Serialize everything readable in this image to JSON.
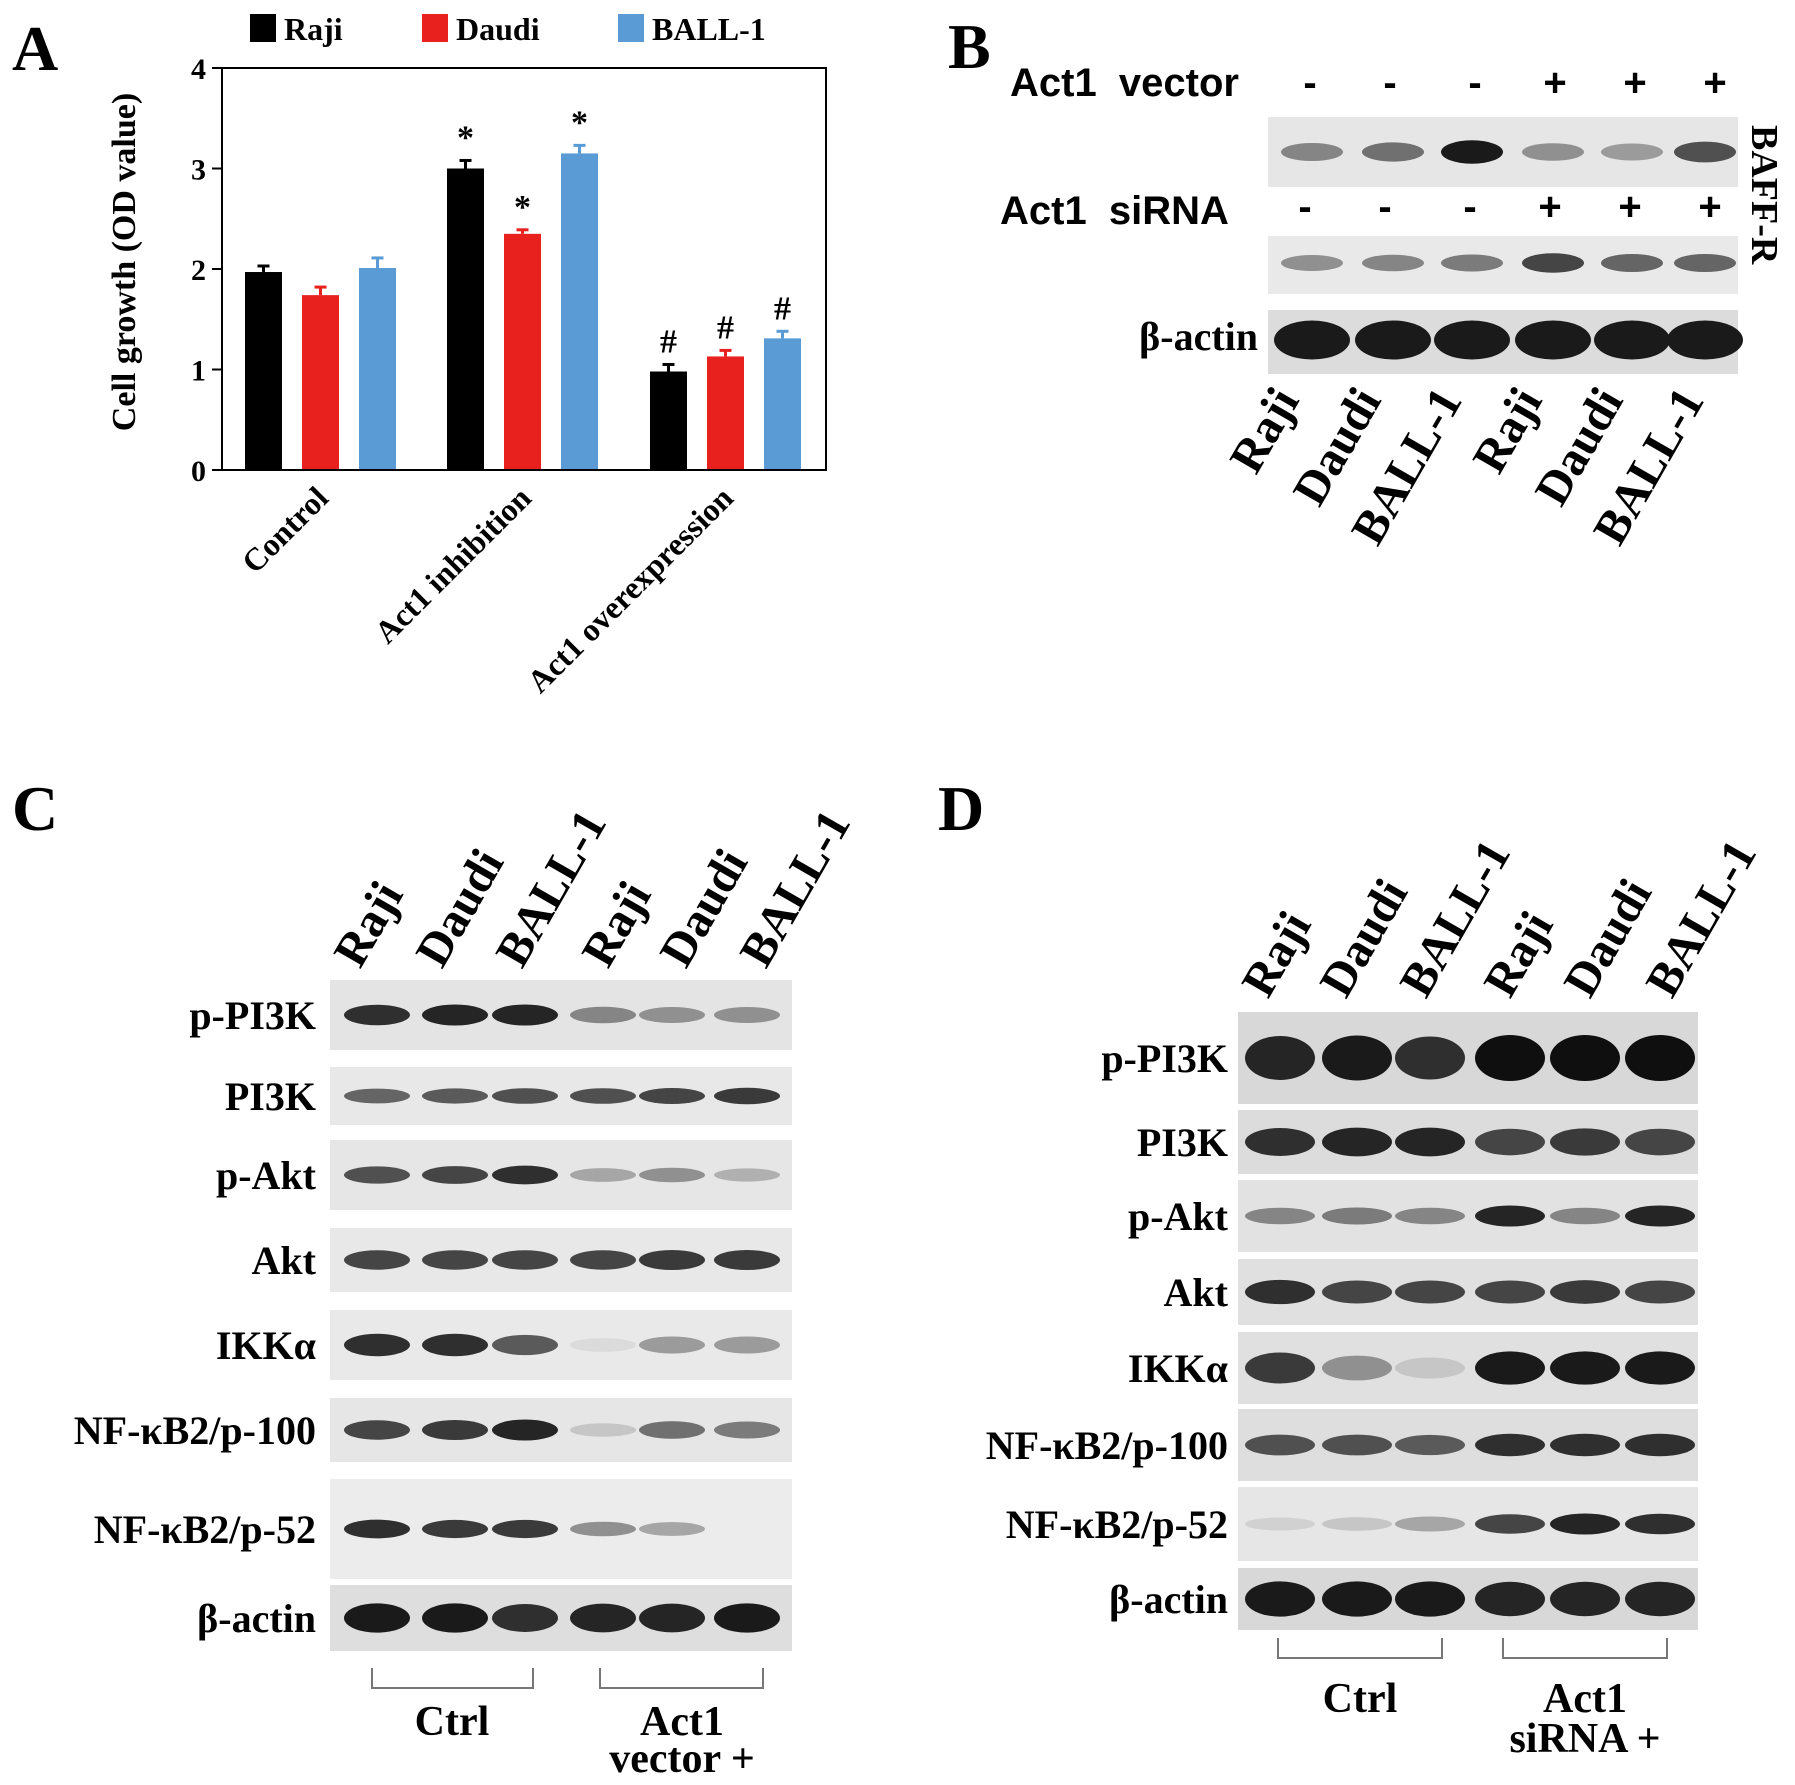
{
  "panels": {
    "a": {
      "letter": "A"
    },
    "b": {
      "letter": "B",
      "vector_label": "Act1  vector",
      "vector_signs": [
        "-",
        "-",
        "-",
        "+",
        "+",
        "+"
      ],
      "sirna_label": "Act1  siRNA",
      "sirna_signs": [
        "-",
        "-",
        "-",
        "+",
        "+",
        "+"
      ],
      "side_label": "BAFF-R",
      "actin_label": "β-actin",
      "lanes": [
        "Raji",
        "Daudi",
        "BALL-1",
        "Raji",
        "Daudi",
        "BALL-1"
      ]
    },
    "c": {
      "letter": "C",
      "lanes": [
        "Raji",
        "Daudi",
        "BALL-1",
        "Raji",
        "Daudi",
        "BALL-1"
      ],
      "rows": [
        "p-PI3K",
        "PI3K",
        "p-Akt",
        "Akt",
        "IKKα",
        "NF-κB2/p-100",
        "NF-κB2/p-52",
        "β-actin"
      ],
      "group_ctrl": "Ctrl",
      "group_treat_line1": "Act1",
      "group_treat_line2": "vector +"
    },
    "d": {
      "letter": "D",
      "lanes": [
        "Raji",
        "Daudi",
        "BALL-1",
        "Raji",
        "Daudi",
        "BALL-1"
      ],
      "rows": [
        "p-PI3K",
        "PI3K",
        "p-Akt",
        "Akt",
        "IKKα",
        "NF-κB2/p-100",
        "NF-κB2/p-52",
        "β-actin"
      ],
      "group_ctrl": "Ctrl",
      "group_treat_line1": "Act1",
      "group_treat_line2": "siRNA +"
    }
  },
  "chart_data": {
    "type": "bar",
    "title": "",
    "xlabel": "",
    "ylabel": "Cell growth (OD value)",
    "ylim": [
      0,
      4
    ],
    "yticks": [
      "0",
      "1",
      "2",
      "3",
      "4"
    ],
    "categories": [
      "Control",
      "Act1 inhibition",
      "Act1 overexpression"
    ],
    "series": [
      {
        "name": "Raji",
        "color": "#000000",
        "values": [
          1.97,
          3.0,
          0.98
        ],
        "errors": [
          0.06,
          0.08,
          0.07
        ],
        "marks": [
          "",
          "*",
          "#"
        ]
      },
      {
        "name": "Daudi",
        "color": "#e8211f",
        "values": [
          1.74,
          2.35,
          1.13
        ],
        "errors": [
          0.08,
          0.04,
          0.06
        ],
        "marks": [
          "",
          "*",
          "#"
        ]
      },
      {
        "name": "BALL-1",
        "color": "#5b9bd5",
        "values": [
          2.01,
          3.15,
          1.31
        ],
        "errors": [
          0.1,
          0.08,
          0.07
        ],
        "marks": [
          "",
          "*",
          "#"
        ]
      }
    ],
    "legend_position": "top",
    "grid": false
  },
  "blots": {
    "b_top": [
      0.45,
      0.55,
      0.95,
      0.4,
      0.35,
      0.7
    ],
    "b_mid": [
      0.4,
      0.45,
      0.5,
      0.75,
      0.6,
      0.6
    ],
    "b_actin": [
      0.95,
      0.95,
      0.95,
      0.95,
      0.95,
      0.95
    ],
    "c": [
      [
        0.85,
        0.9,
        0.9,
        0.45,
        0.4,
        0.4
      ],
      [
        0.6,
        0.65,
        0.7,
        0.7,
        0.75,
        0.8
      ],
      [
        0.7,
        0.75,
        0.85,
        0.3,
        0.4,
        0.25
      ],
      [
        0.75,
        0.75,
        0.75,
        0.75,
        0.8,
        0.8
      ],
      [
        0.85,
        0.85,
        0.65,
        0.05,
        0.35,
        0.35
      ],
      [
        0.75,
        0.8,
        0.9,
        0.15,
        0.55,
        0.5
      ],
      [
        0.85,
        0.8,
        0.8,
        0.4,
        0.3,
        0.0
      ],
      [
        0.95,
        0.95,
        0.85,
        0.9,
        0.9,
        0.95
      ]
    ],
    "d": [
      [
        0.9,
        0.95,
        0.85,
        1.0,
        1.0,
        1.0
      ],
      [
        0.85,
        0.9,
        0.9,
        0.75,
        0.8,
        0.75
      ],
      [
        0.45,
        0.5,
        0.45,
        0.9,
        0.45,
        0.9
      ],
      [
        0.85,
        0.75,
        0.75,
        0.75,
        0.8,
        0.75
      ],
      [
        0.8,
        0.4,
        0.15,
        0.95,
        0.95,
        0.95
      ],
      [
        0.7,
        0.7,
        0.65,
        0.85,
        0.85,
        0.85
      ],
      [
        0.1,
        0.15,
        0.3,
        0.75,
        0.9,
        0.85
      ],
      [
        0.95,
        0.95,
        0.95,
        0.9,
        0.9,
        0.9
      ]
    ]
  }
}
